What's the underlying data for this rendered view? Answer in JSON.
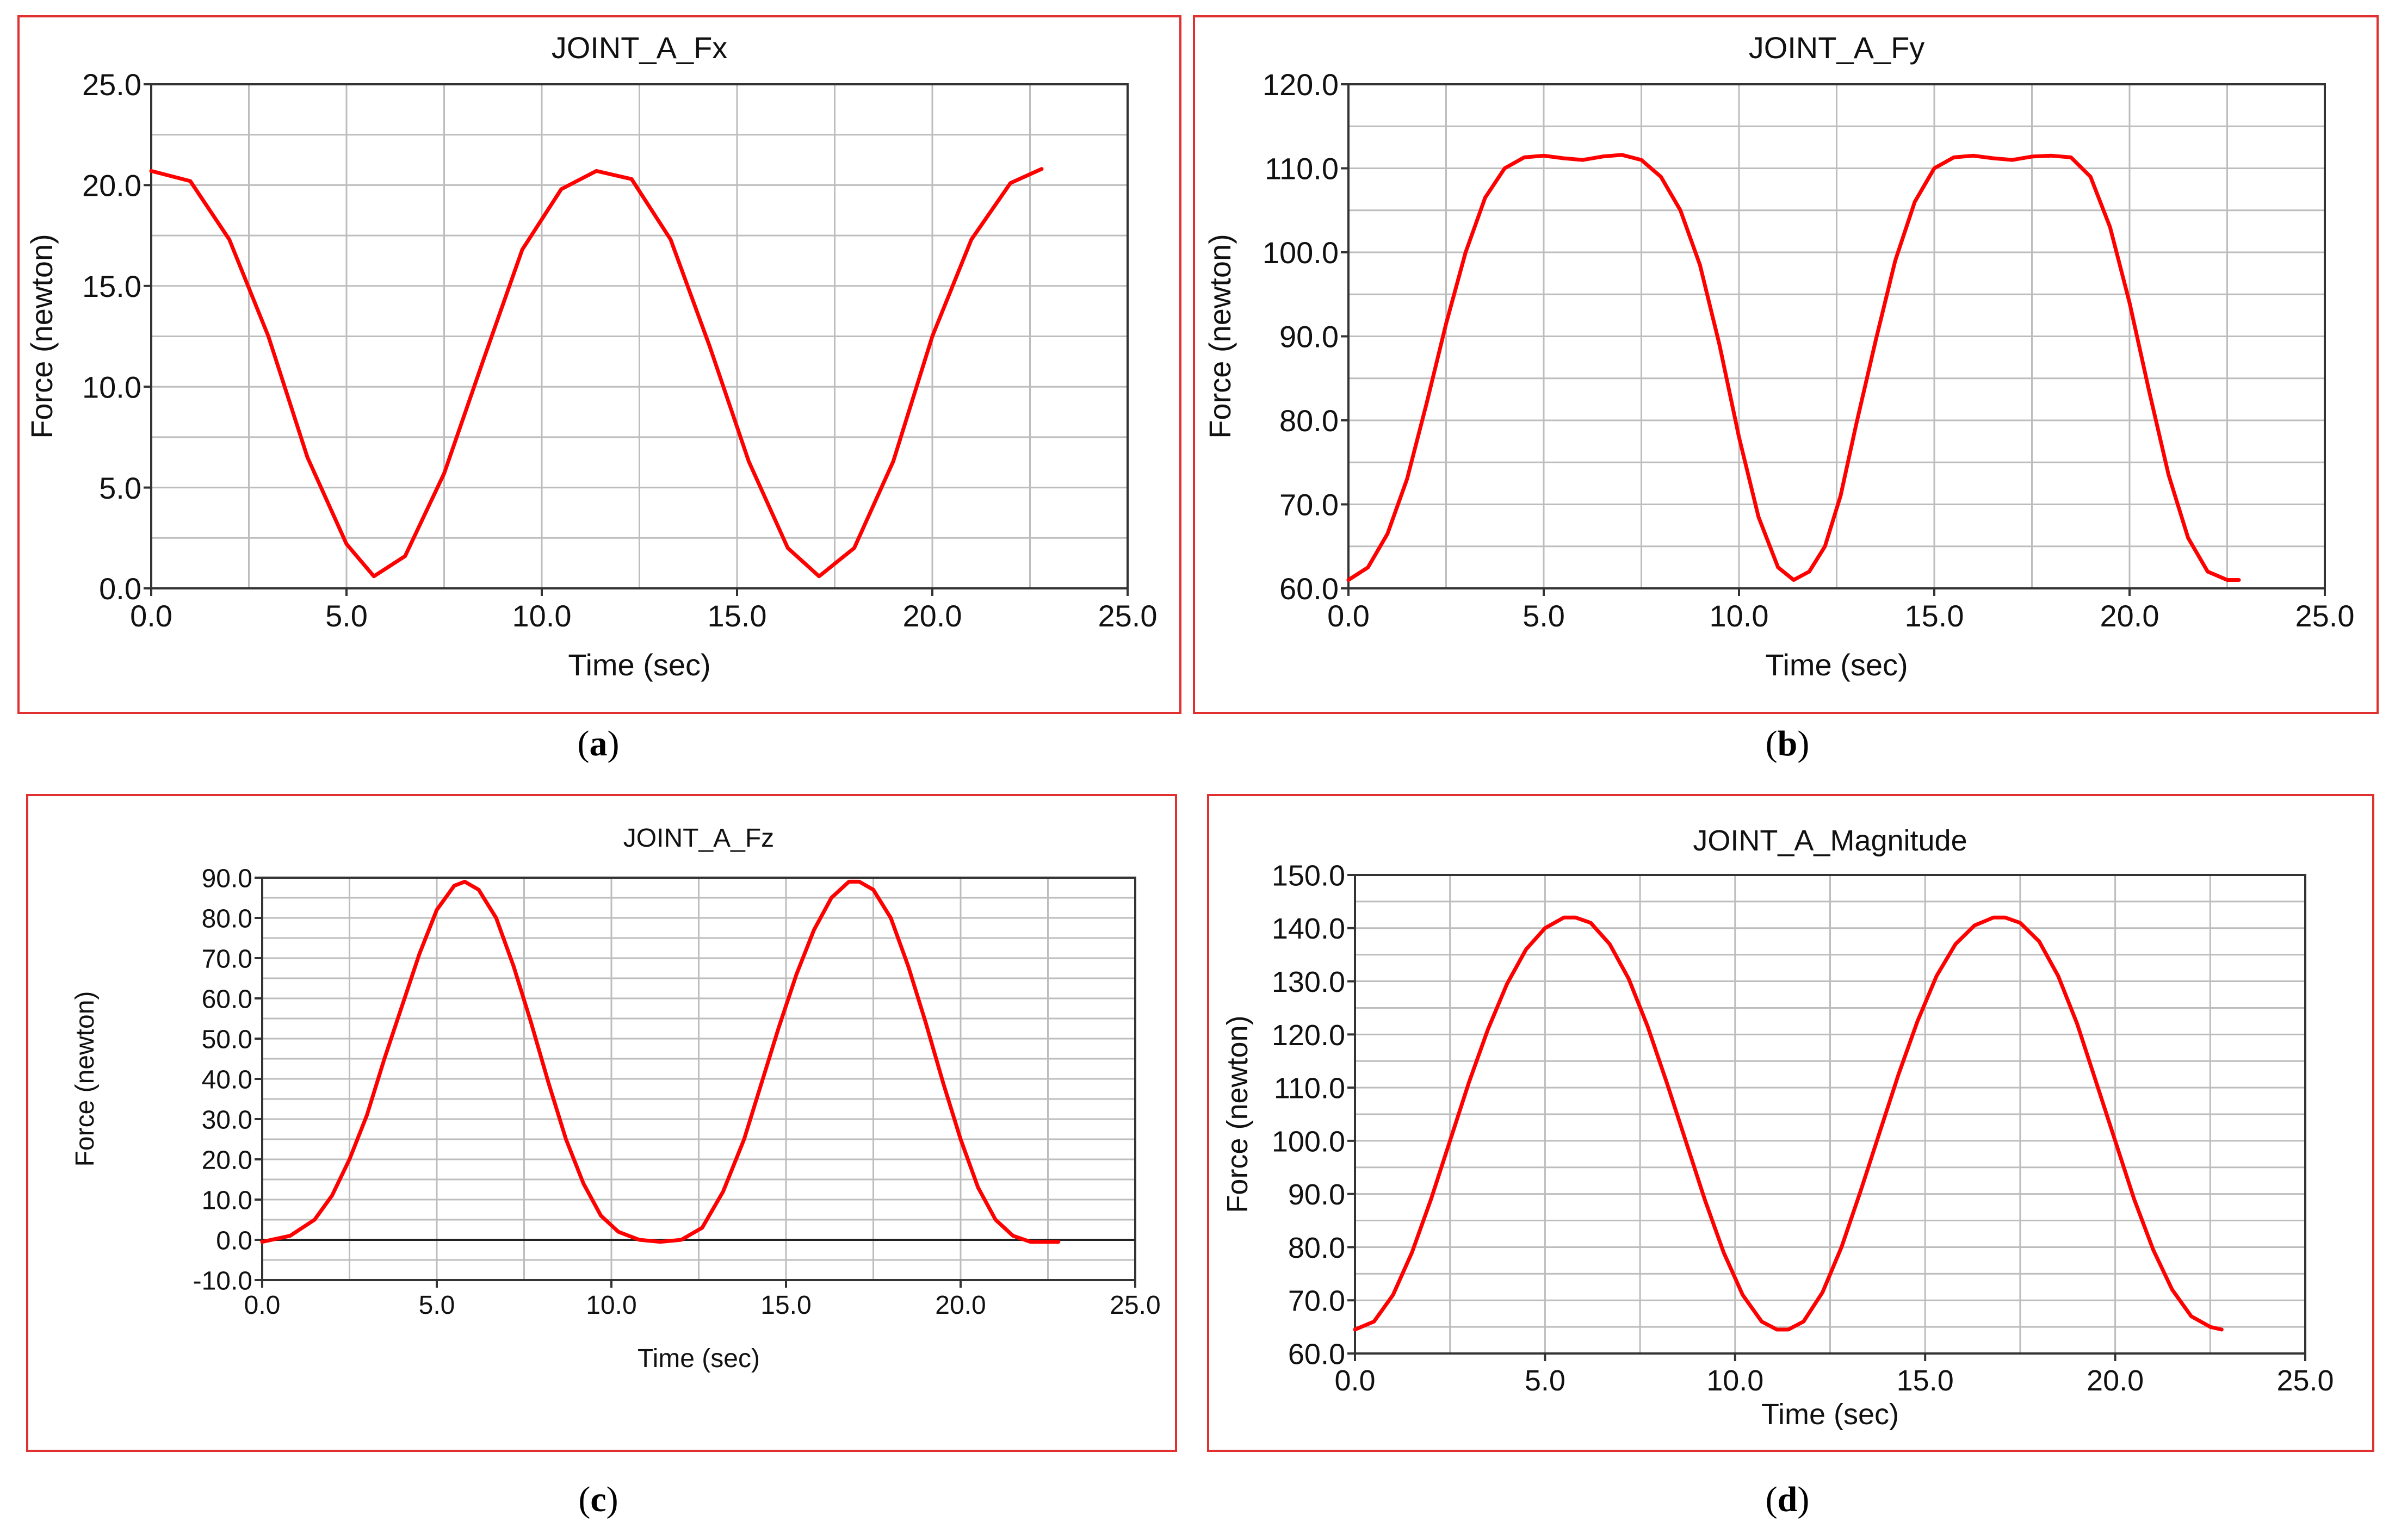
{
  "figure": {
    "captions": [
      "a",
      "b",
      "c",
      "d"
    ]
  },
  "chart_data": [
    {
      "type": "line",
      "title": "JOINT_A_Fx",
      "xlabel": "Time (sec)",
      "ylabel": "Force (newton)",
      "xlim": [
        0,
        25
      ],
      "ylim": [
        0,
        25
      ],
      "xticks": [
        0,
        5,
        10,
        15,
        20,
        25
      ],
      "xtick_labels": [
        "0.0",
        "5.0",
        "10.0",
        "15.0",
        "20.0",
        "25.0"
      ],
      "yticks": [
        0,
        5,
        10,
        15,
        20,
        25
      ],
      "ytick_labels": [
        "0.0",
        "5.0",
        "10.0",
        "15.0",
        "20.0",
        "25.0"
      ],
      "series": [
        {
          "name": "JOINT_A_Fx",
          "color": "#ff0000",
          "x": [
            0.0,
            1.0,
            2.0,
            3.0,
            4.0,
            5.0,
            5.7,
            6.5,
            7.5,
            8.5,
            9.5,
            10.5,
            11.4,
            12.3,
            13.3,
            14.3,
            15.3,
            16.3,
            17.1,
            18.0,
            19.0,
            20.0,
            21.0,
            22.0,
            22.8
          ],
          "values": [
            20.7,
            20.2,
            17.3,
            12.5,
            6.5,
            2.2,
            0.6,
            1.6,
            5.7,
            11.3,
            16.8,
            19.8,
            20.7,
            20.3,
            17.3,
            12.0,
            6.3,
            2.0,
            0.6,
            2.0,
            6.3,
            12.5,
            17.3,
            20.1,
            20.8
          ]
        }
      ]
    },
    {
      "type": "line",
      "title": "JOINT_A_Fy",
      "xlabel": "Time (sec)",
      "ylabel": "Force (newton)",
      "xlim": [
        0,
        25
      ],
      "ylim": [
        60,
        120
      ],
      "xticks": [
        0,
        5,
        10,
        15,
        20,
        25
      ],
      "xtick_labels": [
        "0.0",
        "5.0",
        "10.0",
        "15.0",
        "20.0",
        "25.0"
      ],
      "yticks": [
        60,
        70,
        80,
        90,
        100,
        110,
        120
      ],
      "ytick_labels": [
        "60.0",
        "70.0",
        "80.0",
        "90.0",
        "100.0",
        "110.0",
        "120.0"
      ],
      "series": [
        {
          "name": "JOINT_A_Fy",
          "color": "#ff0000",
          "x": [
            0.0,
            0.5,
            1.0,
            1.5,
            2.0,
            2.5,
            3.0,
            3.5,
            4.0,
            4.5,
            5.0,
            5.5,
            6.0,
            6.5,
            7.0,
            7.5,
            8.0,
            8.5,
            9.0,
            9.5,
            10.0,
            10.5,
            11.0,
            11.4,
            11.8,
            12.2,
            12.6,
            13.0,
            13.5,
            14.0,
            14.5,
            15.0,
            15.5,
            16.0,
            16.5,
            17.0,
            17.5,
            18.0,
            18.5,
            19.0,
            19.5,
            20.0,
            20.5,
            21.0,
            21.5,
            22.0,
            22.5,
            22.8
          ],
          "values": [
            61.0,
            62.5,
            66.5,
            73.0,
            82.0,
            91.5,
            100.0,
            106.5,
            110.0,
            111.3,
            111.5,
            111.2,
            111.0,
            111.4,
            111.6,
            111.0,
            109.0,
            105.0,
            98.5,
            89.0,
            78.0,
            68.5,
            62.5,
            61.0,
            62.0,
            65.0,
            71.0,
            79.5,
            89.5,
            99.0,
            106.0,
            110.0,
            111.3,
            111.5,
            111.2,
            111.0,
            111.4,
            111.5,
            111.3,
            109.0,
            103.0,
            94.0,
            83.5,
            73.5,
            66.0,
            62.0,
            61.0,
            61.0
          ]
        }
      ]
    },
    {
      "type": "line",
      "title": "JOINT_A_Fz",
      "xlabel": "Time (sec)",
      "ylabel": "Force (newton)",
      "xlim": [
        0,
        25
      ],
      "ylim": [
        -10,
        90
      ],
      "xticks": [
        0,
        5,
        10,
        15,
        20,
        25
      ],
      "xtick_labels": [
        "0.0",
        "5.0",
        "10.0",
        "15.0",
        "20.0",
        "25.0"
      ],
      "yticks": [
        -10,
        0,
        10,
        20,
        30,
        40,
        50,
        60,
        70,
        80,
        90
      ],
      "ytick_labels": [
        "-10.0",
        "0.0",
        "10.0",
        "20.0",
        "30.0",
        "40.0",
        "50.0",
        "60.0",
        "70.0",
        "80.0",
        "90.0"
      ],
      "zero_line": true,
      "series": [
        {
          "name": "JOINT_A_Fz",
          "color": "#ff0000",
          "x": [
            0.0,
            0.8,
            1.5,
            2.0,
            2.5,
            3.0,
            3.5,
            4.0,
            4.5,
            5.0,
            5.5,
            5.8,
            6.2,
            6.7,
            7.2,
            7.7,
            8.2,
            8.7,
            9.2,
            9.7,
            10.2,
            10.8,
            11.4,
            12.0,
            12.6,
            13.2,
            13.8,
            14.3,
            14.8,
            15.3,
            15.8,
            16.3,
            16.8,
            17.1,
            17.5,
            18.0,
            18.5,
            19.0,
            19.5,
            20.0,
            20.5,
            21.0,
            21.5,
            22.0,
            22.8
          ],
          "values": [
            -0.5,
            1.0,
            5.0,
            11.0,
            20.0,
            31.0,
            45.0,
            58.0,
            71.0,
            82.0,
            88.0,
            89.0,
            87.0,
            80.0,
            68.0,
            54.0,
            39.0,
            25.0,
            14.0,
            6.0,
            2.0,
            0.0,
            -0.5,
            0.0,
            3.0,
            12.0,
            25.0,
            39.0,
            53.0,
            66.0,
            77.0,
            85.0,
            89.0,
            89.0,
            87.0,
            80.0,
            68.0,
            54.0,
            39.0,
            25.0,
            13.0,
            5.0,
            1.0,
            -0.5,
            -0.5
          ]
        }
      ]
    },
    {
      "type": "line",
      "title": "JOINT_A_Magnitude",
      "xlabel": "Time (sec)",
      "ylabel": "Force (newton)",
      "xlim": [
        0,
        25
      ],
      "ylim": [
        60,
        150
      ],
      "xticks": [
        0,
        5,
        10,
        15,
        20,
        25
      ],
      "xtick_labels": [
        "0.0",
        "5.0",
        "10.0",
        "15.0",
        "20.0",
        "25.0"
      ],
      "yticks": [
        60,
        70,
        80,
        90,
        100,
        110,
        120,
        130,
        140,
        150
      ],
      "ytick_labels": [
        "60.0",
        "70.0",
        "80.0",
        "90.0",
        "100.0",
        "110.0",
        "120.0",
        "130.0",
        "140.0",
        "150.0"
      ],
      "series": [
        {
          "name": "JOINT_A_Magnitude",
          "color": "#ff0000",
          "x": [
            0.0,
            0.5,
            1.0,
            1.5,
            2.0,
            2.5,
            3.0,
            3.5,
            4.0,
            4.5,
            5.0,
            5.5,
            5.8,
            6.2,
            6.7,
            7.2,
            7.7,
            8.2,
            8.7,
            9.2,
            9.7,
            10.2,
            10.7,
            11.1,
            11.4,
            11.8,
            12.3,
            12.8,
            13.3,
            13.8,
            14.3,
            14.8,
            15.3,
            15.8,
            16.3,
            16.8,
            17.1,
            17.5,
            18.0,
            18.5,
            19.0,
            19.5,
            20.0,
            20.5,
            21.0,
            21.5,
            22.0,
            22.5,
            22.8
          ],
          "values": [
            64.5,
            66.0,
            71.0,
            79.0,
            89.0,
            100.0,
            111.0,
            121.0,
            129.5,
            136.0,
            140.0,
            142.0,
            142.0,
            141.0,
            137.0,
            130.5,
            121.5,
            111.0,
            100.0,
            89.0,
            79.0,
            71.0,
            66.0,
            64.5,
            64.5,
            66.0,
            71.5,
            80.0,
            90.5,
            101.5,
            112.5,
            122.5,
            131.0,
            137.0,
            140.5,
            142.0,
            142.0,
            141.0,
            137.5,
            131.0,
            122.0,
            111.0,
            100.0,
            89.0,
            79.5,
            72.0,
            67.0,
            65.0,
            64.5
          ]
        }
      ]
    }
  ]
}
